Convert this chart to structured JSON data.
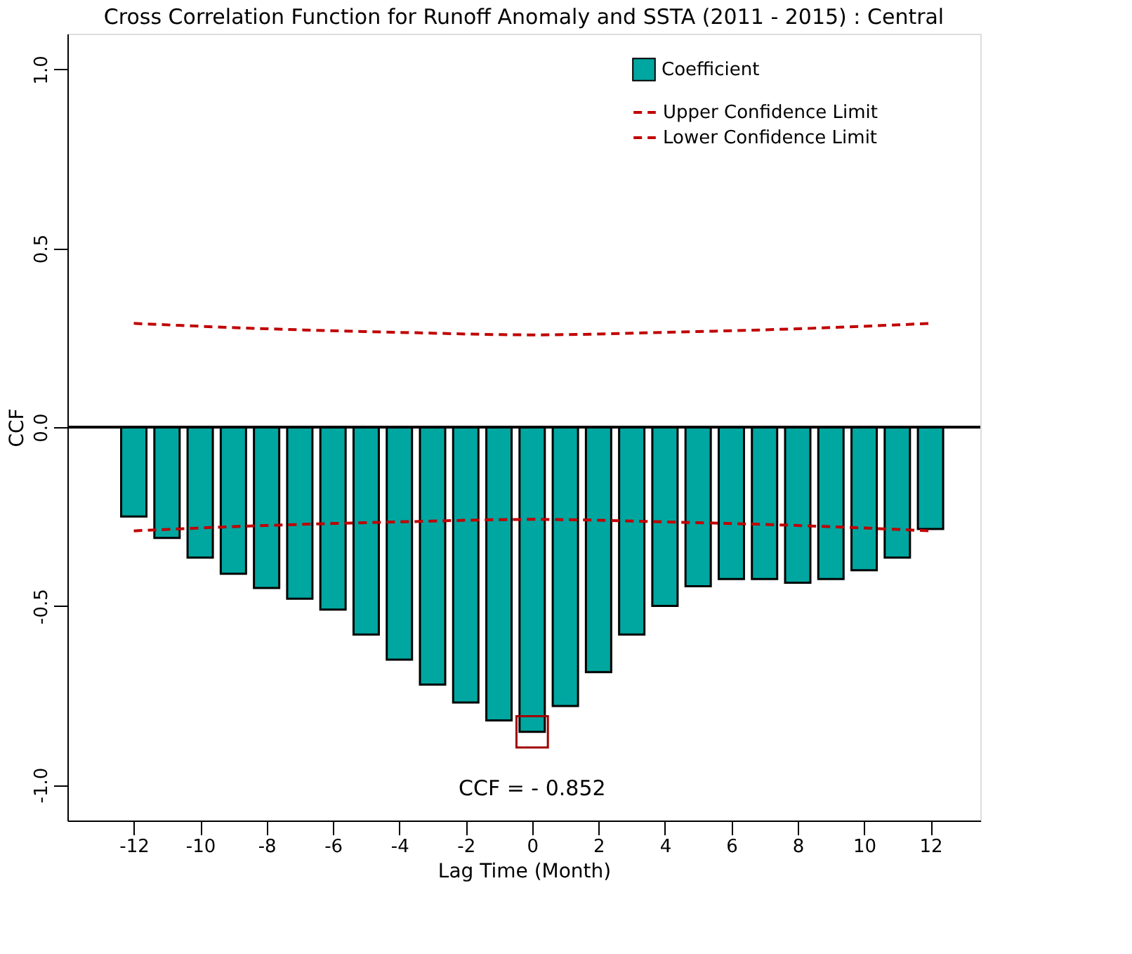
{
  "chart_data": {
    "type": "bar",
    "title": "Cross Correlation Function for Runoff Anomaly and SSTA (2011 - 2015) : Central",
    "xlabel": "Lag Time (Month)",
    "ylabel": "CCF",
    "x": [
      -12,
      -11,
      -10,
      -9,
      -8,
      -7,
      -6,
      -5,
      -4,
      -3,
      -2,
      -1,
      0,
      1,
      2,
      3,
      4,
      5,
      6,
      7,
      8,
      9,
      10,
      11,
      12
    ],
    "series": [
      {
        "name": "Coefficient",
        "color": "#00a6a0",
        "values": [
          -0.25,
          -0.31,
          -0.365,
          -0.41,
          -0.45,
          -0.48,
          -0.51,
          -0.58,
          -0.65,
          -0.72,
          -0.77,
          -0.82,
          -0.852,
          -0.78,
          -0.685,
          -0.58,
          -0.5,
          -0.445,
          -0.425,
          -0.425,
          -0.435,
          -0.425,
          -0.4,
          -0.365,
          -0.285
        ]
      },
      {
        "name": "Upper Confidence Limit",
        "type": "line",
        "line_style": "dashed",
        "color": "#c00000",
        "x": [
          -12,
          -8,
          -4,
          0,
          4,
          8,
          12
        ],
        "values": [
          0.29,
          0.275,
          0.265,
          0.258,
          0.265,
          0.275,
          0.29
        ]
      },
      {
        "name": "Lower Confidence Limit",
        "type": "line",
        "line_style": "dashed",
        "color": "#c00000",
        "x": [
          -12,
          -8,
          -4,
          0,
          4,
          8,
          12
        ],
        "values": [
          -0.29,
          -0.275,
          -0.265,
          -0.258,
          -0.265,
          -0.275,
          -0.29
        ]
      }
    ],
    "xlim": [
      -14,
      13.5
    ],
    "xticks": [
      -12,
      -10,
      -8,
      -6,
      -4,
      -2,
      0,
      2,
      4,
      6,
      8,
      10,
      12
    ],
    "ylim": [
      -1.1,
      1.1
    ],
    "yticks": [
      {
        "value": -1,
        "label": "-1.0"
      },
      -0.5,
      {
        "value": 0,
        "label": "0.0"
      },
      0.5,
      {
        "value": 1,
        "label": "1.0"
      }
    ],
    "ref_lines": [
      {
        "axis": "y",
        "value": 0,
        "color": "#000000"
      }
    ],
    "annotations": [
      {
        "text": "CCF = - 0.852",
        "x": 0,
        "y": -0.852
      }
    ],
    "legend": "top right",
    "grid": false
  }
}
